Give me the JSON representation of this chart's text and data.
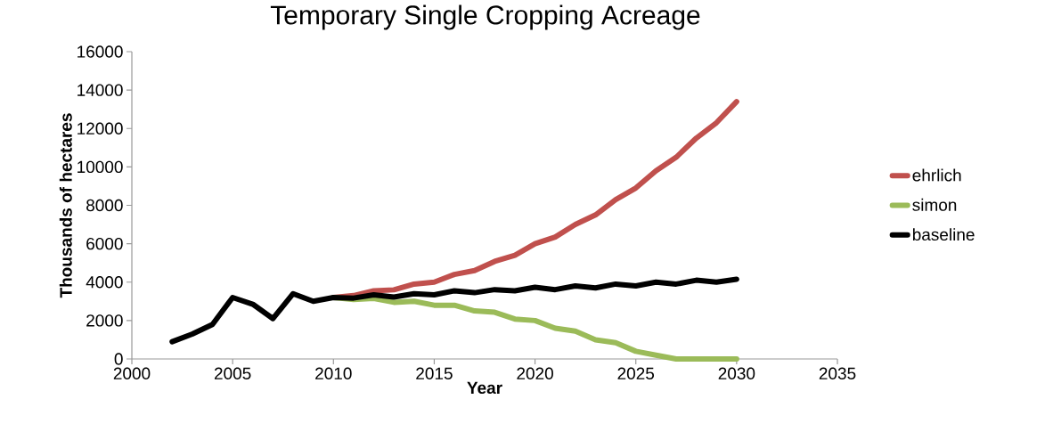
{
  "chart_data": {
    "type": "line",
    "title": "Temporary Single Cropping Acreage",
    "xlabel": "Year",
    "ylabel": "Thousands of hectares",
    "xlim": [
      2000,
      2035
    ],
    "xticks": [
      2000,
      2005,
      2010,
      2015,
      2020,
      2025,
      2030,
      2035
    ],
    "ylim": [
      0,
      16000
    ],
    "yticks": [
      0,
      2000,
      4000,
      6000,
      8000,
      10000,
      12000,
      14000,
      16000
    ],
    "grid": false,
    "legend": "right",
    "marker": "none",
    "line_style": "solid",
    "series": [
      {
        "name": "ehrlich",
        "color": "#c0504d",
        "x": [
          2010,
          2011,
          2012,
          2013,
          2014,
          2015,
          2016,
          2017,
          2018,
          2019,
          2020,
          2021,
          2022,
          2023,
          2024,
          2025,
          2026,
          2027,
          2028,
          2029,
          2030
        ],
        "values": [
          3200,
          3300,
          3550,
          3600,
          3900,
          4000,
          4400,
          4600,
          5080,
          5400,
          6000,
          6350,
          7000,
          7500,
          8300,
          8900,
          9800,
          10500,
          11500,
          12300,
          13400
        ]
      },
      {
        "name": "simon",
        "color": "#9bbb59",
        "x": [
          2010,
          2011,
          2012,
          2013,
          2014,
          2015,
          2016,
          2017,
          2018,
          2019,
          2020,
          2021,
          2022,
          2023,
          2024,
          2025,
          2026,
          2027,
          2028,
          2029,
          2030
        ],
        "values": [
          3200,
          3100,
          3150,
          2950,
          3000,
          2800,
          2800,
          2500,
          2430,
          2080,
          2000,
          1600,
          1450,
          1000,
          850,
          400,
          200,
          0,
          0,
          0,
          0
        ]
      },
      {
        "name": "baseline",
        "color": "#000000",
        "x": [
          2002,
          2003,
          2004,
          2005,
          2006,
          2007,
          2008,
          2009,
          2010,
          2011,
          2012,
          2013,
          2014,
          2015,
          2016,
          2017,
          2018,
          2019,
          2020,
          2021,
          2022,
          2023,
          2024,
          2025,
          2026,
          2027,
          2028,
          2029,
          2030
        ],
        "values": [
          900,
          1300,
          1800,
          3200,
          2850,
          2100,
          3400,
          3000,
          3200,
          3170,
          3340,
          3220,
          3400,
          3340,
          3550,
          3450,
          3610,
          3550,
          3730,
          3610,
          3800,
          3700,
          3900,
          3800,
          4000,
          3900,
          4100,
          4000,
          4150
        ]
      }
    ]
  }
}
